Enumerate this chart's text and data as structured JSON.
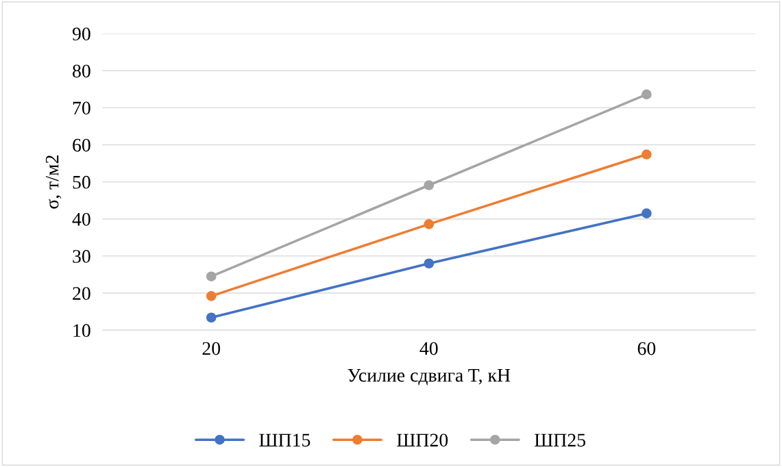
{
  "chart_data": {
    "type": "line",
    "xlabel": "Усилие сдвига T, кН",
    "ylabel": "σ, т/м2",
    "categories": [
      "20",
      "40",
      "60"
    ],
    "series": [
      {
        "name": "ШП15",
        "color": "#4472c4",
        "values": [
          13.4,
          28,
          41.5
        ]
      },
      {
        "name": "ШП20",
        "color": "#ed7d31",
        "values": [
          19.2,
          38.6,
          57.4
        ]
      },
      {
        "name": "ШП25",
        "color": "#a5a5a5",
        "values": [
          24.5,
          49.1,
          73.6
        ]
      }
    ],
    "ylim": [
      10,
      90
    ],
    "yticks": [
      10,
      20,
      30,
      40,
      50,
      60,
      70,
      80,
      90
    ],
    "grid": "y",
    "legend": "bottom",
    "marker": "circle",
    "line_style": "solid"
  }
}
